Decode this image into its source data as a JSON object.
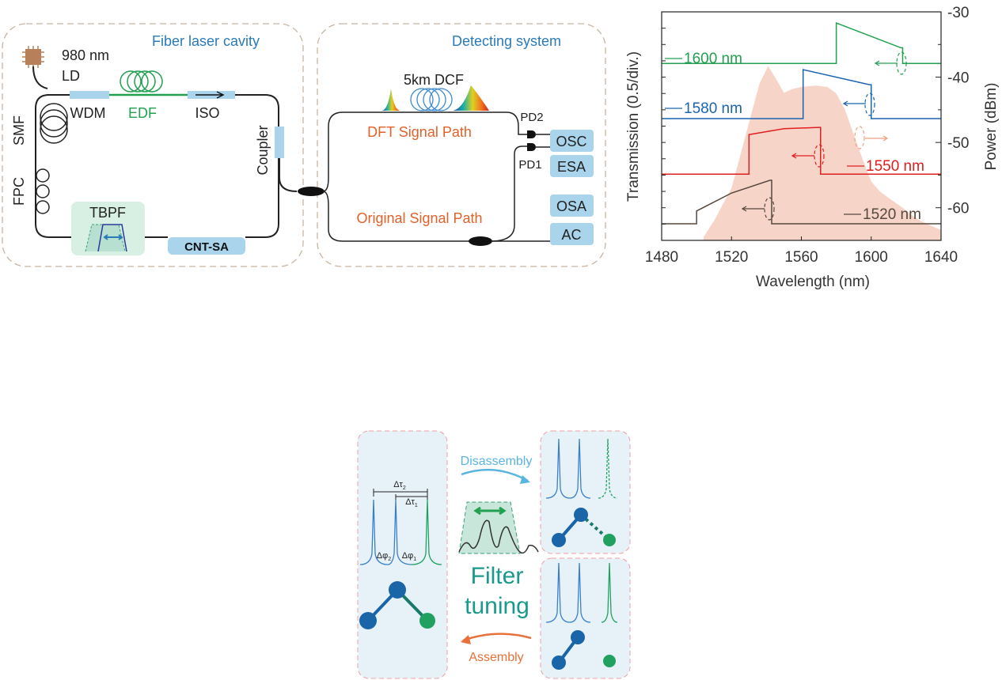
{
  "setup": {
    "cavity_title": "Fiber laser cavity",
    "detect_title": "Detecting system",
    "ld_wavelength": "980 nm",
    "ld": "LD",
    "wdm": "WDM",
    "edf": "EDF",
    "iso": "ISO",
    "smf": "SMF",
    "fpc": "FPC",
    "tbpf": "TBPF",
    "cnt_sa": "CNT-SA",
    "coupler": "Coupler",
    "dcf": "5km DCF",
    "dft_path": "DFT Signal Path",
    "original_path": "Original Signal Path",
    "pd2": "PD2",
    "pd1": "PD1",
    "osc": "OSC",
    "esa": "ESA",
    "osa": "OSA",
    "ac": "AC",
    "colors": {
      "cavity_title": "#2a7ab8",
      "edf": "#22a050",
      "path": "#e0622a",
      "box": "#a9d4ec",
      "tbpf_bg": "#d8efe4"
    }
  },
  "concept": {
    "disassembly": "Disassembly",
    "assembly": "Assembly",
    "filter_line1": "Filter",
    "filter_line2": "tuning",
    "dtau2": "Δτ",
    "dtau2_sub": "2",
    "dtau1": "Δτ",
    "dtau1_sub": "1",
    "dphi2": "Δφ",
    "dphi2_sub": "2",
    "dphi1": "Δφ",
    "dphi1_sub": "1",
    "colors": {
      "blue": "#1a64a8",
      "green": "#22a060",
      "teal": "#1a9a8a",
      "disassembly": "#5ab4e0",
      "assembly": "#e8703a"
    }
  },
  "chart_data": {
    "type": "line",
    "xlabel": "Wavelength (nm)",
    "ylabel_left": "Transmission (0.5/div.)",
    "ylabel_right": "Power (dBm)",
    "xlim": [
      1480,
      1640
    ],
    "ylim_left": [
      0,
      7
    ],
    "ylim_right": [
      -65,
      -30
    ],
    "x_ticks": [
      1480,
      1520,
      1560,
      1600,
      1640
    ],
    "y_right_ticks": [
      -30,
      -40,
      -50,
      -60
    ],
    "grid": false,
    "spectrum": {
      "axis": "right",
      "color": "#f6d4c8",
      "x": [
        1504,
        1510,
        1520,
        1530,
        1536,
        1541,
        1546,
        1550,
        1555,
        1560,
        1568,
        1575,
        1580,
        1585,
        1590,
        1595,
        1600,
        1605,
        1610,
        1618,
        1625,
        1632,
        1640
      ],
      "y": [
        -64.5,
        -62,
        -57,
        -47,
        -41,
        -38.3,
        -40.5,
        -42.4,
        -41.8,
        -41.5,
        -41.3,
        -41.5,
        -42.5,
        -45,
        -48.8,
        -52.5,
        -56,
        -57.5,
        -58.5,
        -60,
        -61.5,
        -62.5,
        -63.4
      ]
    },
    "series": [
      {
        "name": "1600 nm",
        "color": "#22a050",
        "axis": "left",
        "x": [
          1480,
          1580,
          1580,
          1617,
          1618,
          1618,
          1640
        ],
        "y": [
          5.42,
          5.42,
          6.66,
          5.9,
          5.9,
          5.42,
          5.42
        ]
      },
      {
        "name": "1580 nm",
        "color": "#1a64b0",
        "axis": "left",
        "x": [
          1480,
          1561,
          1561,
          1599,
          1600,
          1600,
          1640
        ],
        "y": [
          3.73,
          3.73,
          5.23,
          4.77,
          4.77,
          3.73,
          3.73
        ]
      },
      {
        "name": "1550 nm",
        "color": "#e01e1e",
        "axis": "left",
        "x": [
          1480,
          1530,
          1530,
          1550,
          1570,
          1571,
          1571,
          1640
        ],
        "y": [
          2.03,
          2.03,
          3.24,
          3.42,
          3.46,
          3.46,
          2.03,
          2.03
        ]
      },
      {
        "name": "1520 nm",
        "color": "#55483e",
        "axis": "left",
        "x": [
          1480,
          1500,
          1500,
          1520,
          1542,
          1543,
          1543,
          1640
        ],
        "y": [
          0.51,
          0.51,
          0.9,
          1.45,
          1.84,
          1.84,
          0.51,
          0.51
        ]
      }
    ]
  }
}
